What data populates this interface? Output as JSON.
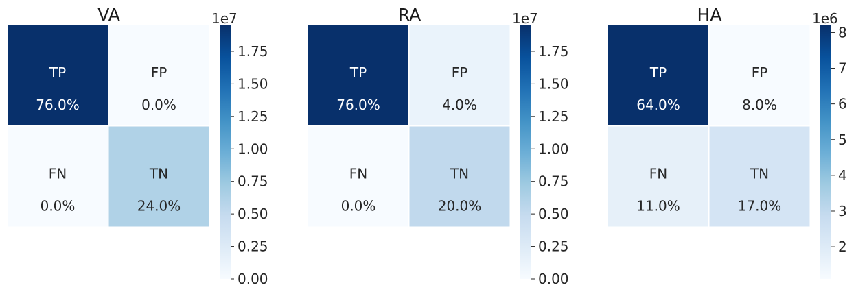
{
  "chart_data": [
    {
      "type": "heatmap",
      "title": "VA",
      "cells": [
        {
          "label": "TP",
          "pct": "76.0%",
          "color": "#08306b"
        },
        {
          "label": "FP",
          "pct": "0.0%",
          "color": "#f7fbff"
        },
        {
          "label": "FN",
          "pct": "0.0%",
          "color": "#f7fbff"
        },
        {
          "label": "TN",
          "pct": "24.0%",
          "color": "#b0d2e7"
        }
      ],
      "colorbar": {
        "multiplier": "1e7",
        "ticks": [
          {
            "value": 0.0,
            "label": "0.00"
          },
          {
            "value": 0.25,
            "label": "0.25"
          },
          {
            "value": 0.5,
            "label": "0.50"
          },
          {
            "value": 0.75,
            "label": "0.75"
          },
          {
            "value": 1.0,
            "label": "1.00"
          },
          {
            "value": 1.25,
            "label": "1.25"
          },
          {
            "value": 1.5,
            "label": "1.50"
          },
          {
            "value": 1.75,
            "label": "1.75"
          }
        ],
        "range": [
          0,
          1.95
        ]
      }
    },
    {
      "type": "heatmap",
      "title": "RA",
      "cells": [
        {
          "label": "TP",
          "pct": "76.0%",
          "color": "#08306b"
        },
        {
          "label": "FP",
          "pct": "4.0%",
          "color": "#eaf3fb"
        },
        {
          "label": "FN",
          "pct": "0.0%",
          "color": "#f7fbff"
        },
        {
          "label": "TN",
          "pct": "20.0%",
          "color": "#c1d9ed"
        }
      ],
      "colorbar": {
        "multiplier": "1e7",
        "ticks": [
          {
            "value": 0.0,
            "label": "0.00"
          },
          {
            "value": 0.25,
            "label": "0.25"
          },
          {
            "value": 0.5,
            "label": "0.50"
          },
          {
            "value": 0.75,
            "label": "0.75"
          },
          {
            "value": 1.0,
            "label": "1.00"
          },
          {
            "value": 1.25,
            "label": "1.25"
          },
          {
            "value": 1.5,
            "label": "1.50"
          },
          {
            "value": 1.75,
            "label": "1.75"
          }
        ],
        "range": [
          0,
          1.95
        ]
      }
    },
    {
      "type": "heatmap",
      "title": "HA",
      "cells": [
        {
          "label": "TP",
          "pct": "64.0%",
          "color": "#08306b"
        },
        {
          "label": "FP",
          "pct": "8.0%",
          "color": "#f7fbff"
        },
        {
          "label": "FN",
          "pct": "11.0%",
          "color": "#e6f0f9"
        },
        {
          "label": "TN",
          "pct": "17.0%",
          "color": "#d4e4f4"
        }
      ],
      "colorbar": {
        "multiplier": "1e6",
        "ticks": [
          {
            "value": 2,
            "label": "2"
          },
          {
            "value": 3,
            "label": "3"
          },
          {
            "value": 4,
            "label": "4"
          },
          {
            "value": 5,
            "label": "5"
          },
          {
            "value": 6,
            "label": "6"
          },
          {
            "value": 7,
            "label": "7"
          },
          {
            "value": 8,
            "label": "8"
          }
        ],
        "range": [
          1.1,
          8.2
        ]
      }
    }
  ],
  "colormap": [
    "#f7fbff",
    "#deebf7",
    "#c6dbef",
    "#9ecae1",
    "#6baed6",
    "#4292c6",
    "#2171b5",
    "#08519c",
    "#08306b"
  ]
}
